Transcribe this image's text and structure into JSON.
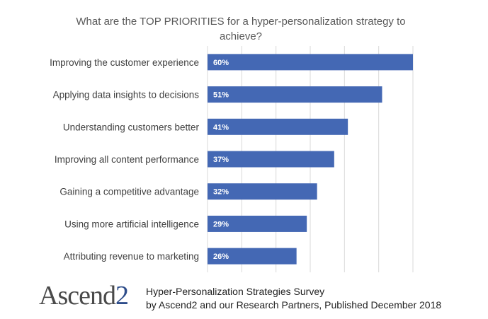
{
  "chart_data": {
    "type": "bar",
    "orientation": "horizontal",
    "title": "What are the TOP PRIORITIES for a hyper-personalization strategy to achieve?",
    "categories": [
      "Improving the customer experience",
      "Applying data insights to decisions",
      "Understanding customers better",
      "Improving all content performance",
      "Gaining a competitive advantage",
      "Using more artificial intelligence",
      "Attributing revenue to marketing"
    ],
    "values": [
      60,
      51,
      41,
      37,
      32,
      29,
      26
    ],
    "value_labels": [
      "60%",
      "51%",
      "41%",
      "37%",
      "32%",
      "29%",
      "26%"
    ],
    "unit": "%",
    "xlim": [
      0,
      60
    ],
    "grid": "vertical",
    "bar_color": "#4468b4"
  },
  "footer": {
    "logo_text": "Ascend",
    "logo_suffix": "2",
    "line1": "Hyper-Personalization Strategies Survey",
    "line2": "by Ascend2 and our Research Partners, Published December 2018"
  }
}
